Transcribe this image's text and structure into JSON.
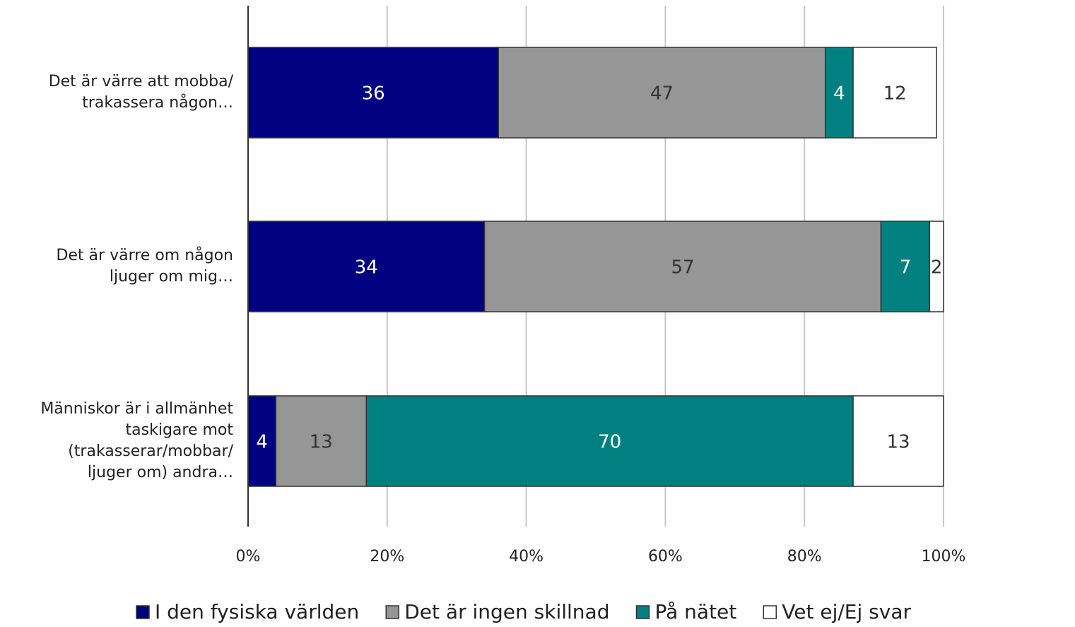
{
  "chart_data": {
    "type": "stacked-bar-horizontal",
    "categories": [
      "Det är värre att mobba/\ntrakassera någon…",
      "Det är värre om någon\nljuger om mig…",
      "Människor är i allmänhet\ntaskigare mot\n(trakasserar/mobbar/\nljuger om) andra…"
    ],
    "series": [
      {
        "name": "I den fysiska världen",
        "color": "#000080",
        "values": [
          36,
          34,
          4
        ]
      },
      {
        "name": "Det är ingen skillnad",
        "color": "#969696",
        "values": [
          47,
          57,
          13
        ]
      },
      {
        "name": "På nätet",
        "color": "#008080",
        "values": [
          4,
          7,
          70
        ]
      },
      {
        "name": "Vet ej/Ej svar",
        "color": "#ffffff",
        "values": [
          12,
          2,
          13
        ]
      }
    ],
    "xlim": [
      0,
      100
    ],
    "xticks": [
      {
        "value": 0,
        "label": "0%"
      },
      {
        "value": 20,
        "label": "20%"
      },
      {
        "value": 40,
        "label": "40%"
      },
      {
        "value": 60,
        "label": "60%"
      },
      {
        "value": 80,
        "label": "80%"
      },
      {
        "value": 100,
        "label": "100%"
      }
    ],
    "grid": true,
    "legend": "bottom"
  }
}
